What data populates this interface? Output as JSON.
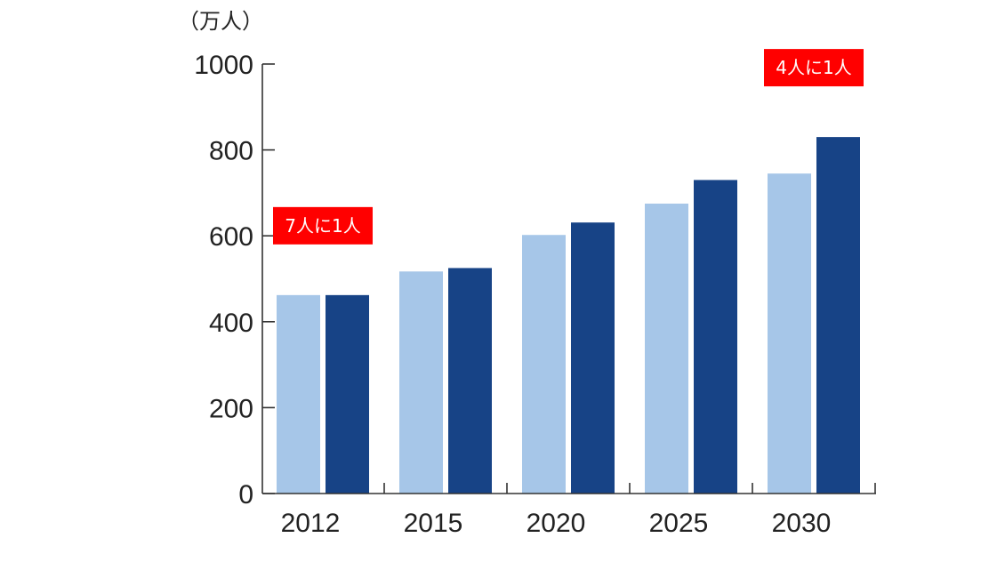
{
  "chart_data": {
    "type": "bar",
    "unit_label": "（万人）",
    "categories": [
      "2012",
      "2015",
      "2020",
      "2025",
      "2030"
    ],
    "series": [
      {
        "values": [
          462,
          517,
          602,
          675,
          745
        ],
        "color": "#a6c6e8"
      },
      {
        "values": [
          462,
          525,
          631,
          730,
          830
        ],
        "color": "#174386"
      }
    ],
    "ylim": [
      0,
      1000
    ],
    "yticks": [
      0,
      200,
      400,
      600,
      800,
      1000
    ],
    "ytick_labels": [
      "0",
      "200",
      "400",
      "600",
      "800",
      "1000"
    ],
    "grid": false,
    "annotations": [
      {
        "text": "7人に1人",
        "category": "2012",
        "color": "#ff0000"
      },
      {
        "text": "4人に1人",
        "category": "2030",
        "color": "#ff0000"
      }
    ]
  }
}
